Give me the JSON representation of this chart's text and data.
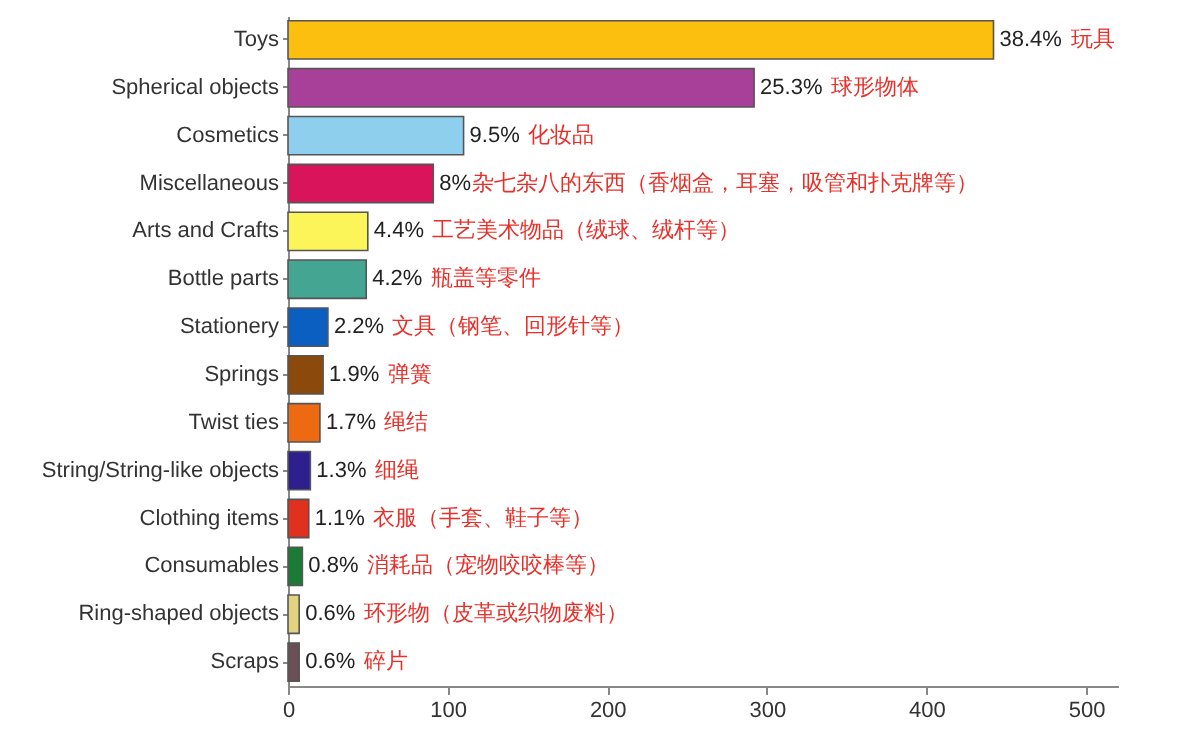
{
  "chart_data": {
    "type": "bar",
    "orientation": "horizontal",
    "categories": [
      "Toys",
      "Spherical objects",
      "Cosmetics",
      "Miscellaneous",
      "Arts and Crafts",
      "Bottle parts",
      "Stationery",
      "Springs",
      "Twist ties",
      "String/String-like objects",
      "Clothing items",
      "Consumables",
      "Ring-shaped objects",
      "Scraps"
    ],
    "values": [
      442,
      292,
      110,
      91,
      50,
      49,
      25,
      22,
      20,
      14,
      13,
      9,
      7,
      7
    ],
    "colors": [
      "#fdbf0f",
      "#a8409a",
      "#8ecfee",
      "#d9145a",
      "#fbf55a",
      "#43a592",
      "#0b5fc0",
      "#8b4a0c",
      "#ee6a12",
      "#2e1f8e",
      "#e0301e",
      "#1a7a36",
      "#e3d27f",
      "#6b4f56"
    ],
    "annotations": [
      "38.4%",
      "玩具",
      "25.3%",
      "球形物体",
      "9.5%",
      "化妆品",
      "8%",
      "杂七杂八的东西（香烟盒，耳塞，吸管和扑克牌等）",
      "4.4%",
      "工艺美术物品（绒球、绒杆等）",
      "4.2%",
      "瓶盖等零件",
      "2.2%",
      "文具（钢笔、回形针等）",
      "1.9%",
      "弹簧",
      "1.7%",
      "绳结",
      "1.3%",
      "细绳",
      "1.1%",
      "衣服（手套、鞋子等）",
      "0.8%",
      "消耗品（宠物咬咬棒等）",
      "0.6%",
      "环形物（皮革或织物废料）",
      "0.6%",
      "碎片"
    ],
    "xlim": [
      0,
      520
    ],
    "xticks": [
      0,
      100,
      200,
      300,
      400,
      500
    ],
    "grid": false
  }
}
